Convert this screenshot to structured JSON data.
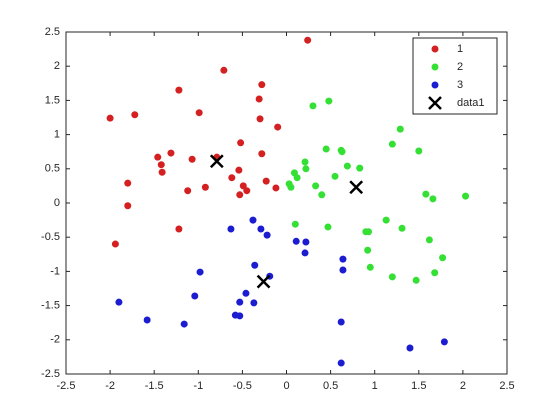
{
  "chart_data": {
    "type": "scatter",
    "xlim": [
      -2.5,
      2.5
    ],
    "ylim": [
      -2.5,
      2.5
    ],
    "xticks": [
      -2.5,
      -2,
      -1.5,
      -1,
      -0.5,
      0,
      0.5,
      1,
      1.5,
      2,
      2.5
    ],
    "yticks": [
      -2.5,
      -2,
      -1.5,
      -1,
      -0.5,
      0,
      0.5,
      1,
      1.5,
      2,
      2.5
    ],
    "grid": false,
    "legend": "northeast",
    "series": [
      {
        "name": "1",
        "color": "#d42020",
        "marker": "o",
        "x": [
          0.24,
          -0.71,
          -1.22,
          -1.72,
          -2.0,
          -0.99,
          -0.28,
          -0.31,
          -0.3,
          -0.1,
          -0.52,
          -1.31,
          -1.46,
          -1.42,
          -1.41,
          -1.07,
          -0.79,
          -0.28,
          -1.8,
          -1.12,
          -0.92,
          -0.62,
          -0.54,
          -0.49,
          -0.45,
          -0.53,
          -0.23,
          -0.12,
          -1.8,
          -1.22,
          -1.94
        ],
        "values": [
          2.38,
          1.94,
          1.65,
          1.29,
          1.24,
          1.32,
          1.73,
          1.52,
          1.23,
          1.11,
          0.88,
          0.73,
          0.67,
          0.56,
          0.45,
          0.64,
          0.67,
          0.72,
          0.29,
          0.18,
          0.23,
          0.37,
          0.48,
          0.25,
          0.18,
          0.12,
          0.32,
          0.22,
          -0.04,
          -0.38,
          -0.6
        ]
      },
      {
        "name": "2",
        "color": "#33e033",
        "marker": "o",
        "x": [
          0.48,
          0.3,
          1.29,
          1.2,
          1.5,
          0.45,
          0.62,
          0.63,
          0.21,
          0.22,
          0.09,
          0.12,
          0.69,
          0.83,
          0.55,
          0.33,
          0.03,
          0.05,
          0.4,
          1.58,
          1.66,
          2.03,
          0.1,
          0.47,
          1.13,
          1.31,
          0.9,
          0.93,
          1.62,
          0.92,
          1.77,
          0.95,
          1.2,
          1.47,
          1.68
        ],
        "values": [
          1.49,
          1.42,
          1.08,
          0.86,
          0.76,
          0.79,
          0.77,
          0.75,
          0.6,
          0.5,
          0.44,
          0.37,
          0.54,
          0.51,
          0.39,
          0.25,
          0.28,
          0.23,
          0.12,
          0.13,
          0.06,
          0.1,
          -0.31,
          -0.35,
          -0.25,
          -0.37,
          -0.42,
          -0.42,
          -0.54,
          -0.69,
          -0.8,
          -0.94,
          -1.08,
          -1.13,
          -1.02
        ]
      },
      {
        "name": "3",
        "color": "#1c1cd0",
        "marker": "o",
        "x": [
          -0.38,
          -0.63,
          -0.29,
          -0.22,
          0.11,
          0.22,
          0.21,
          0.64,
          0.64,
          -0.36,
          -0.98,
          -0.19,
          -1.9,
          -1.04,
          -0.46,
          -0.53,
          -0.37,
          -1.58,
          -1.16,
          -0.58,
          -0.53,
          0.62,
          1.4,
          1.79,
          0.62
        ],
        "values": [
          -0.25,
          -0.38,
          -0.38,
          -0.47,
          -0.56,
          -0.57,
          -0.73,
          -0.82,
          -0.98,
          -0.91,
          -1.01,
          -1.07,
          -1.45,
          -1.36,
          -1.32,
          -1.45,
          -1.46,
          -1.71,
          -1.77,
          -1.64,
          -1.65,
          -1.74,
          -2.12,
          -2.03,
          -2.34
        ]
      },
      {
        "name": "data1",
        "color": "#000000",
        "marker": "x",
        "x": [
          -0.79,
          0.79,
          -0.26
        ],
        "values": [
          0.61,
          0.23,
          -1.15
        ]
      }
    ]
  }
}
